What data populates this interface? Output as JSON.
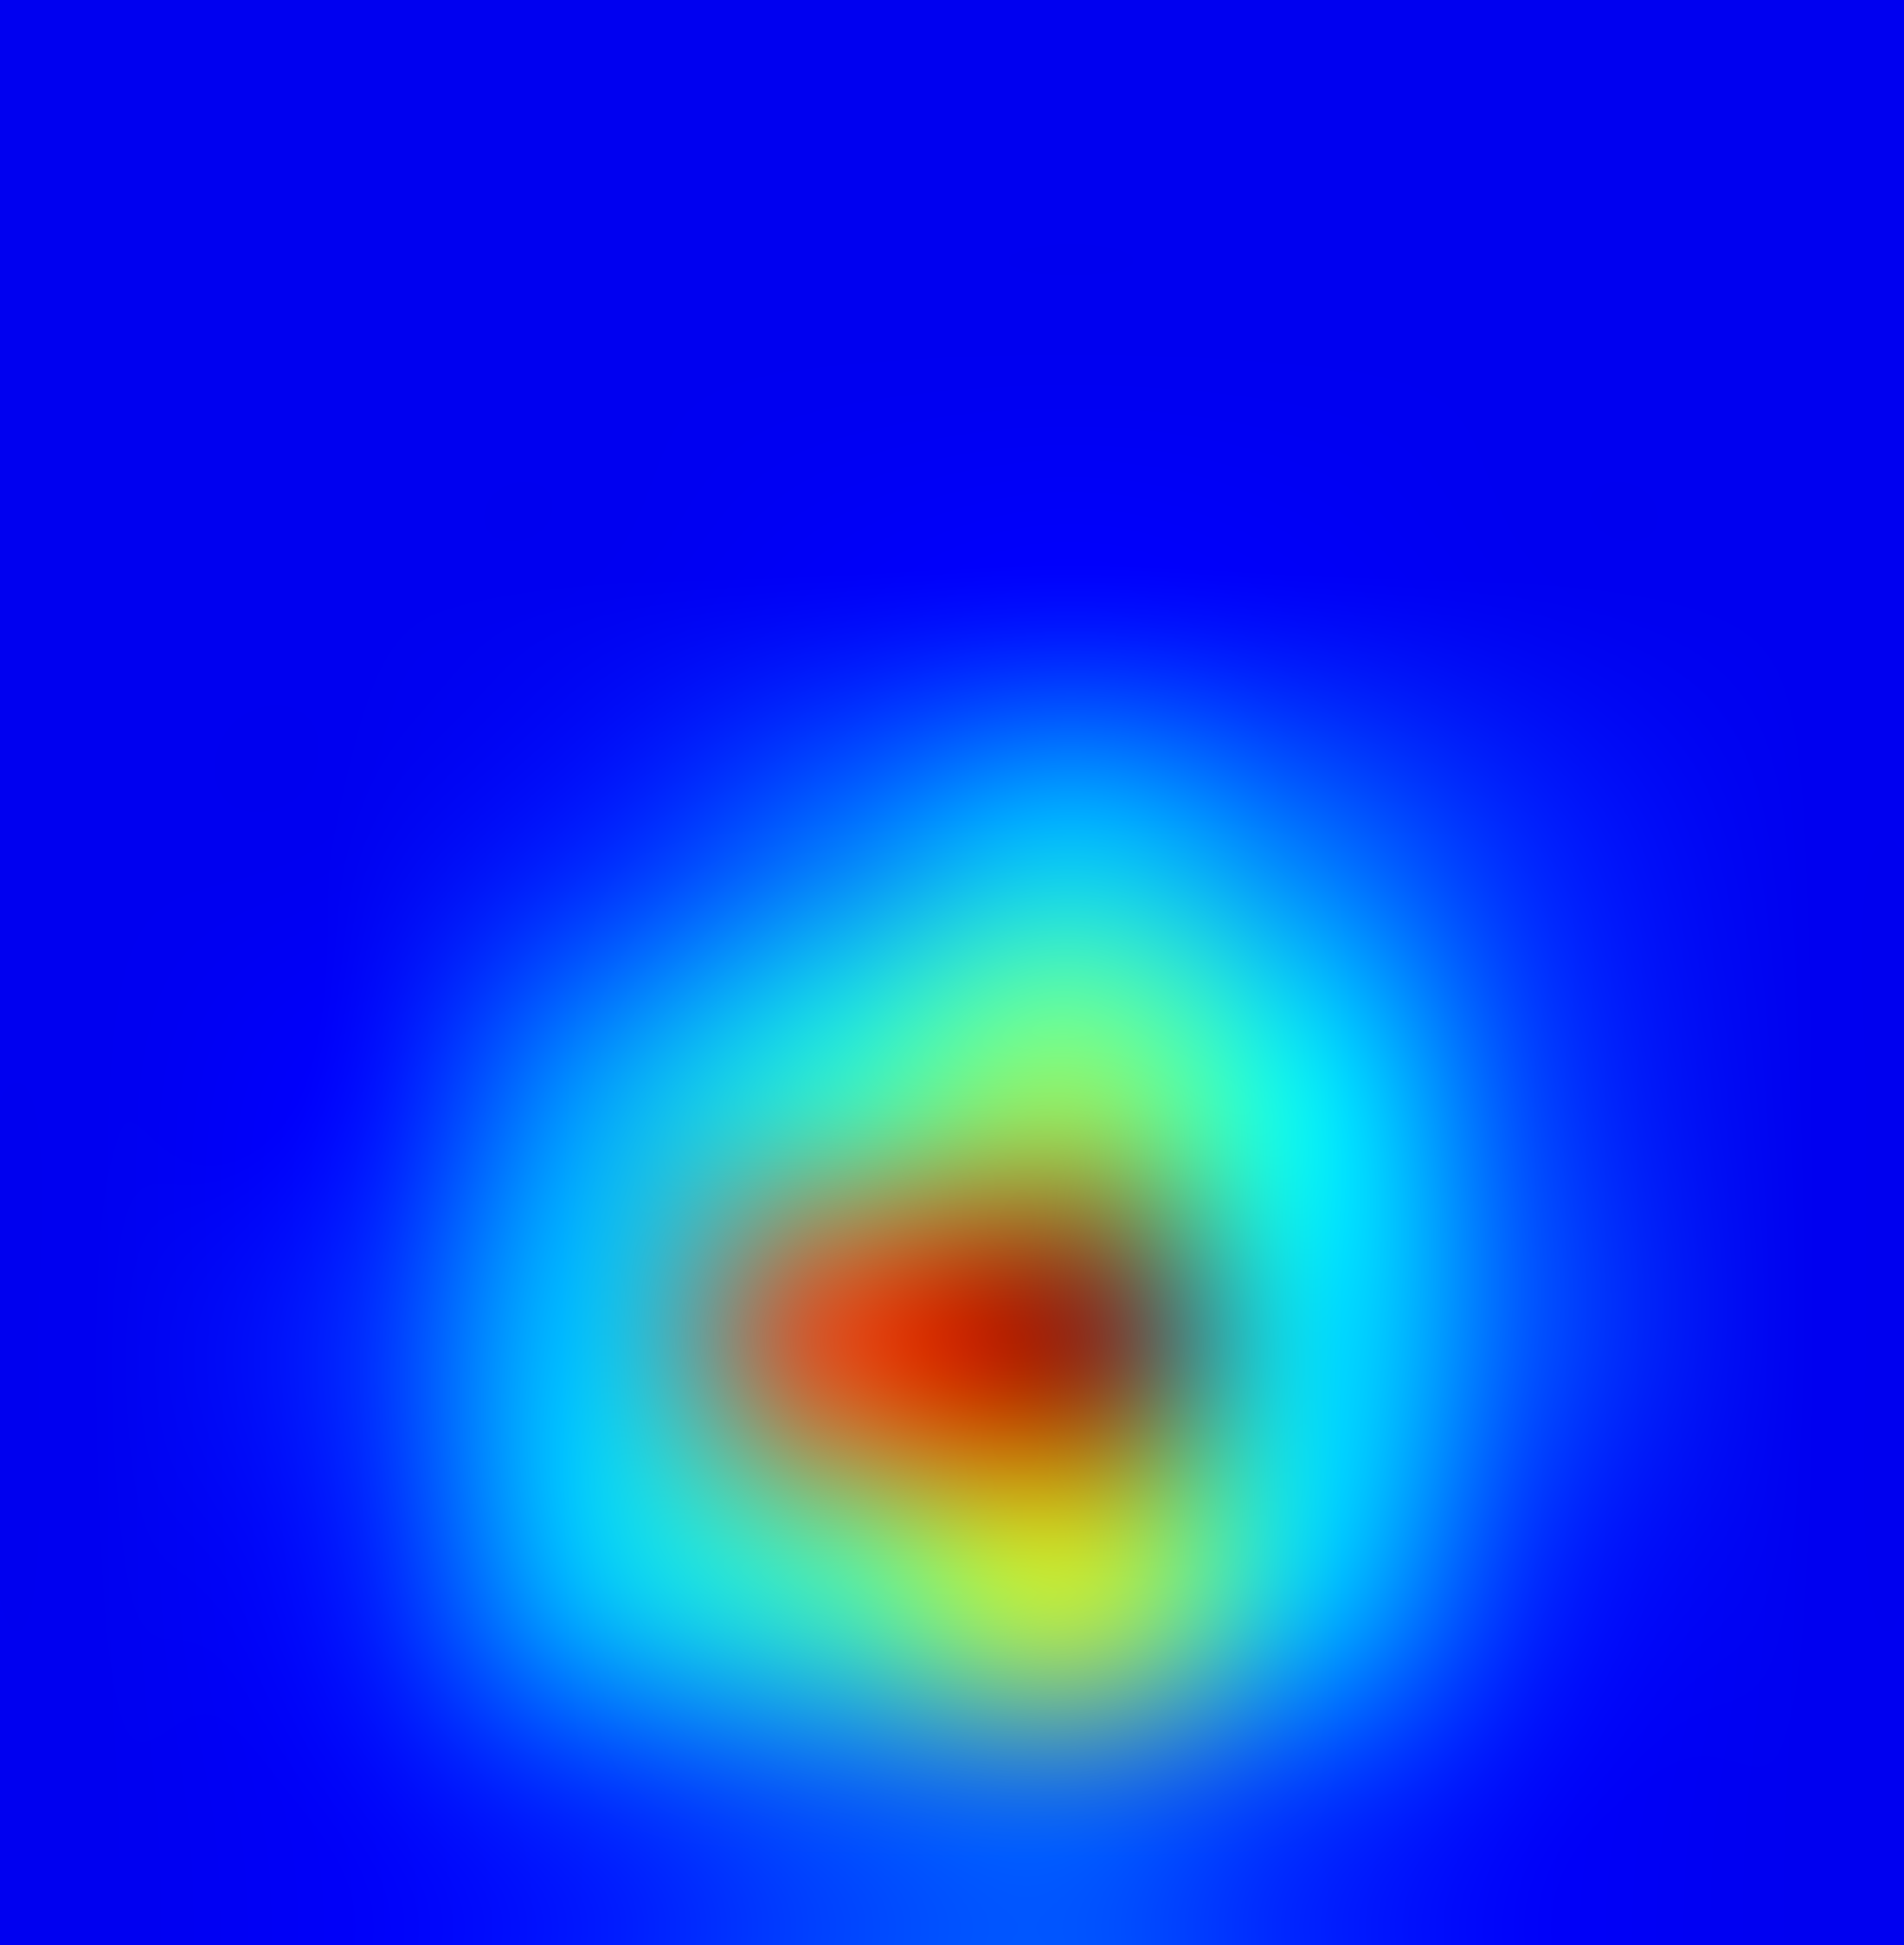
{
  "image": {
    "subject": "heatmap-overlay",
    "colormap": "jet",
    "background_color": "#00009b",
    "visible_text": []
  },
  "heatmap": {
    "grid_rows": 8,
    "grid_cols": 8,
    "values": [
      [
        0.0,
        0.0,
        0.0,
        0.0,
        0.0,
        0.0,
        0.0,
        0.0
      ],
      [
        0.0,
        0.0,
        0.0,
        0.0,
        0.0,
        0.0,
        0.0,
        0.0
      ],
      [
        0.0,
        0.0,
        0.0,
        0.01,
        0.02,
        0.01,
        0.0,
        0.0
      ],
      [
        0.0,
        0.0,
        0.05,
        0.15,
        0.25,
        0.15,
        0.05,
        0.0
      ],
      [
        0.0,
        0.02,
        0.2,
        0.35,
        0.48,
        0.3,
        0.08,
        0.0
      ],
      [
        0.0,
        0.06,
        0.25,
        0.8,
        0.98,
        0.28,
        0.1,
        0.0
      ],
      [
        0.0,
        0.04,
        0.25,
        0.38,
        0.55,
        0.26,
        0.05,
        0.0
      ],
      [
        0.0,
        0.01,
        0.05,
        0.1,
        0.12,
        0.06,
        0.01,
        0.0
      ]
    ]
  }
}
